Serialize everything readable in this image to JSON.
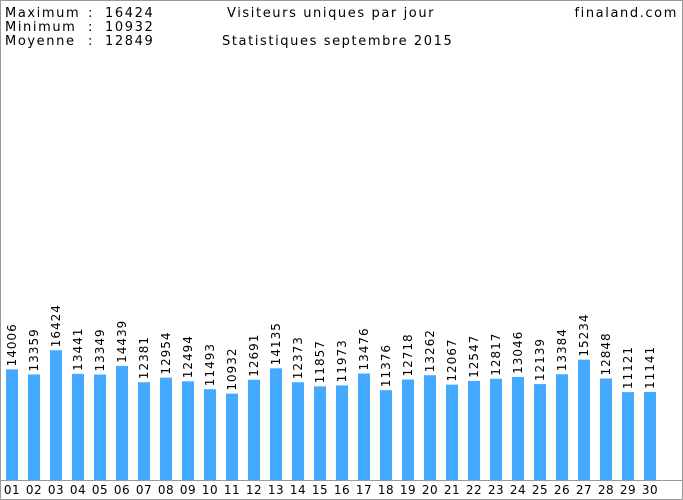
{
  "chart_data": {
    "type": "bar",
    "title": "Visiteurs uniques par jour",
    "subtitle": "Statistiques septembre 2015",
    "site": "finaland.com",
    "stats": [
      {
        "label": "Maximum",
        "value": 16424
      },
      {
        "label": "Minimum",
        "value": 10932
      },
      {
        "label": "Moyenne",
        "value": 12849
      }
    ],
    "categories": [
      "01",
      "02",
      "03",
      "04",
      "05",
      "06",
      "07",
      "08",
      "09",
      "10",
      "11",
      "12",
      "13",
      "14",
      "15",
      "16",
      "17",
      "18",
      "19",
      "20",
      "21",
      "22",
      "23",
      "24",
      "25",
      "26",
      "27",
      "28",
      "29",
      "30"
    ],
    "values": [
      14006,
      13359,
      16424,
      13441,
      13349,
      14439,
      12381,
      12954,
      12494,
      11493,
      10932,
      12691,
      14135,
      12373,
      11857,
      11973,
      13476,
      11376,
      12718,
      13262,
      12067,
      12547,
      12817,
      13046,
      12139,
      13384,
      15234,
      12848,
      11121,
      11141
    ],
    "color": "#44aaff",
    "label_color": "#3d9ee6",
    "ylim": [
      0,
      60000
    ]
  }
}
